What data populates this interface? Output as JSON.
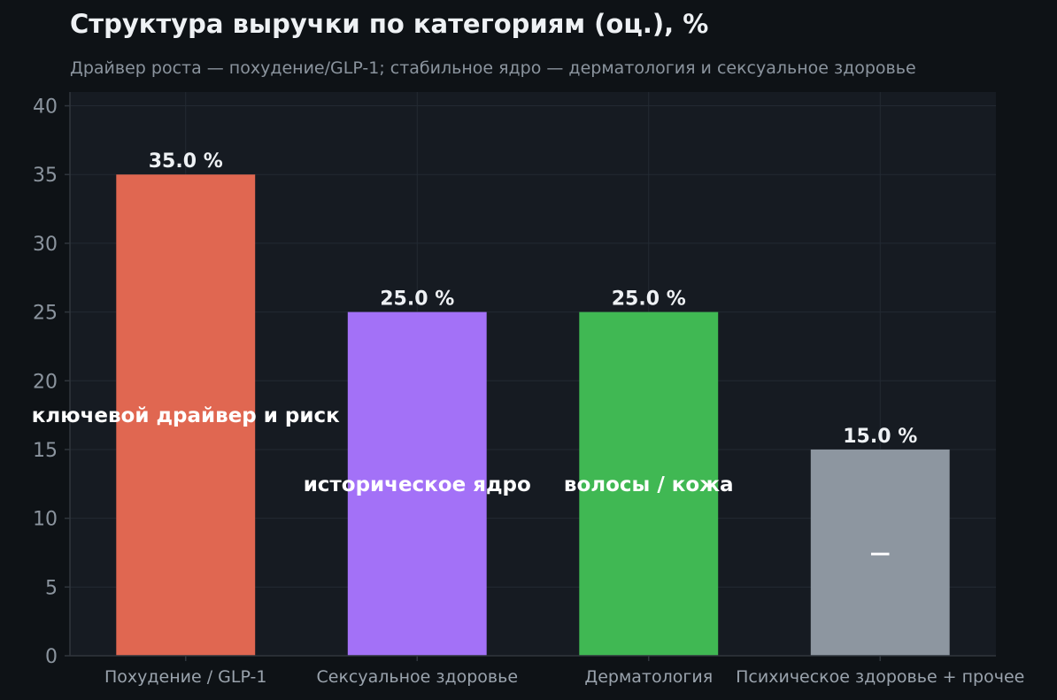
{
  "chart_data": {
    "type": "bar",
    "title": "Структура выручки по категориям (оц.), %",
    "subtitle": "Драйвер роста — похудение/GLP-1; стабильное ядро — дерматология и сексуальное здоровье",
    "categories": [
      "Похудение / GLP-1",
      "Сексуальное здоровье",
      "Дерматология",
      "Психическое здоровье + прочее"
    ],
    "values": [
      35.0,
      25.0,
      25.0,
      15.0
    ],
    "value_labels": [
      "35.0 %",
      "25.0 %",
      "25.0 %",
      "15.0 %"
    ],
    "bar_notes": [
      "ключевой драйвер и риск",
      "историческое ядро",
      "волосы / кожа",
      "—"
    ],
    "bar_colors": [
      "#e06751",
      "#a371f7",
      "#40b853",
      "#8d96a0"
    ],
    "ylim": [
      0,
      41
    ],
    "yticks": [
      0,
      5,
      10,
      15,
      20,
      25,
      30,
      35,
      40
    ],
    "grid": true,
    "xlabel": "",
    "ylabel": ""
  }
}
